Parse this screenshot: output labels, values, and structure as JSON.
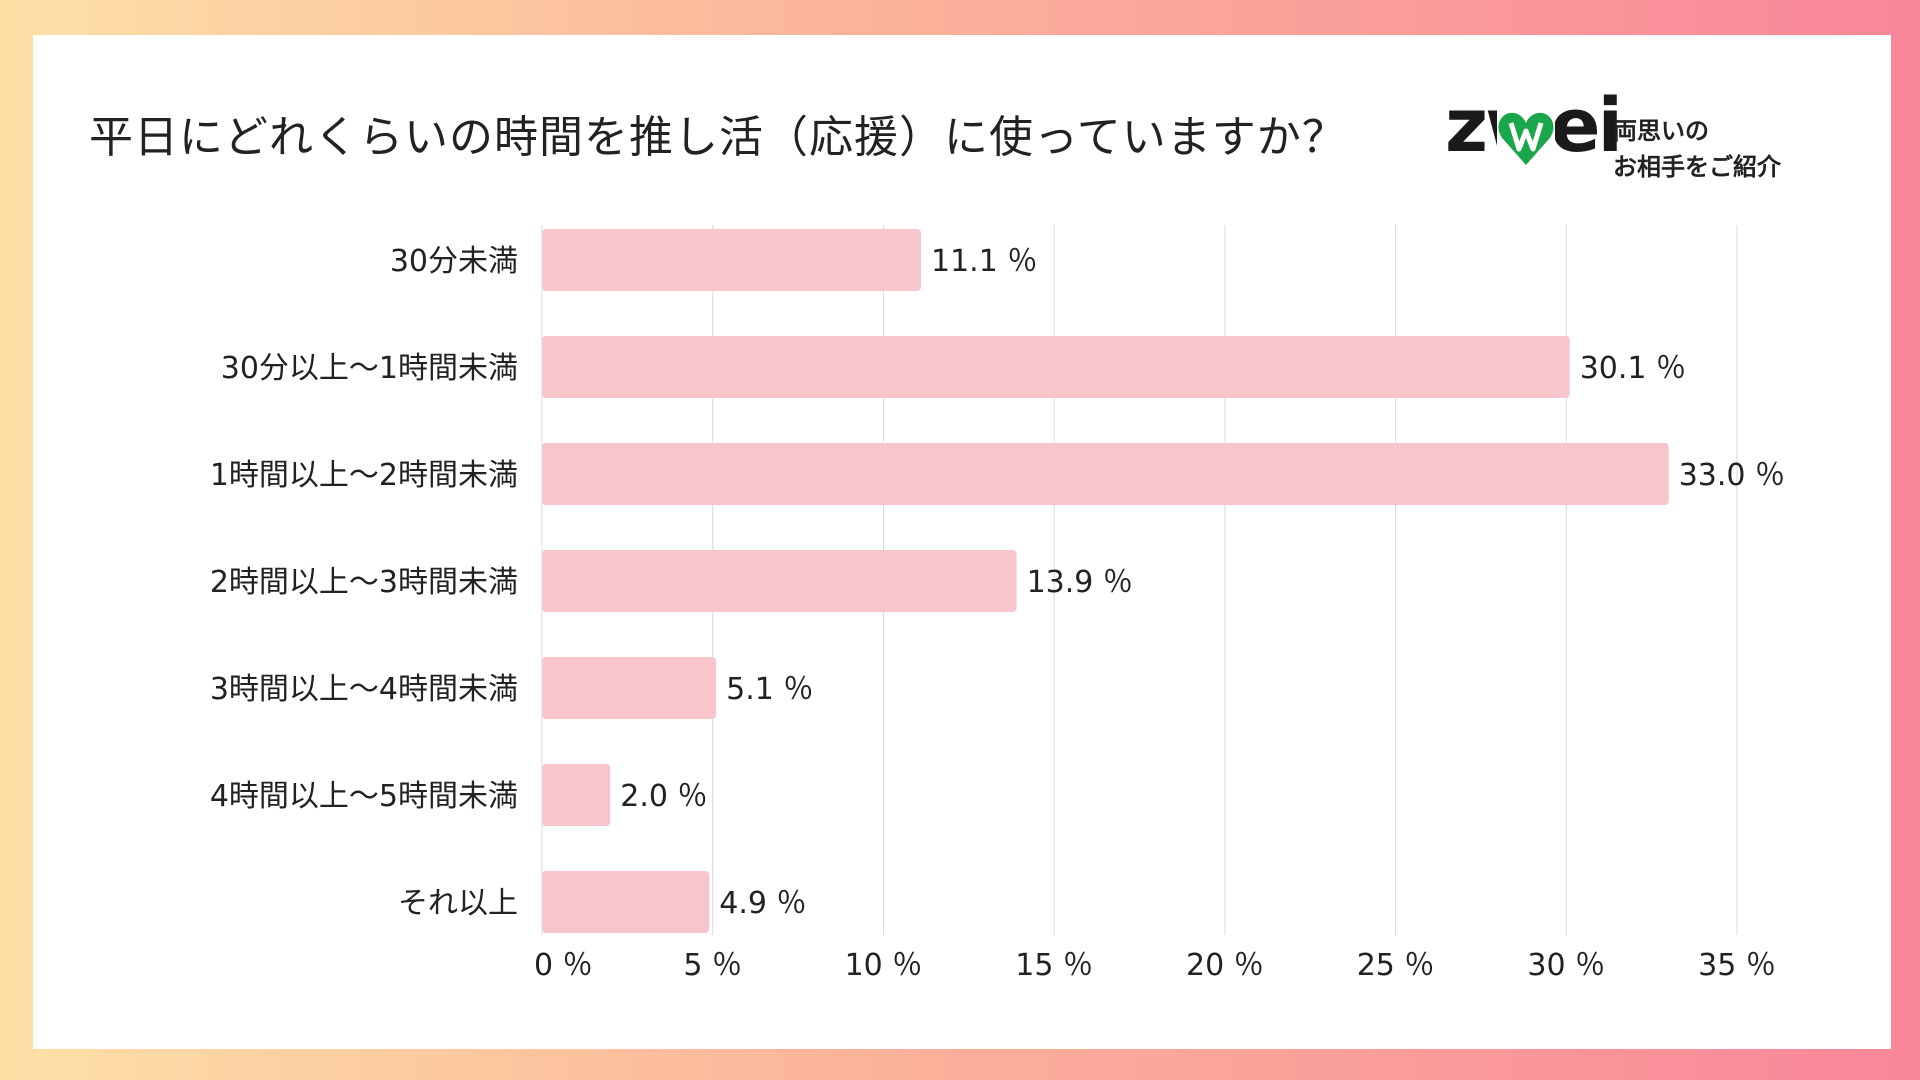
{
  "title": "平日にどれくらいの時間を推し活（応援）に使っていますか？",
  "logo": {
    "word": "zwei",
    "tagline_line1": "両思いの",
    "tagline_line2": "お相手をご紹介",
    "heart_color": "#1aa64a"
  },
  "chart_data": {
    "type": "bar",
    "orientation": "horizontal",
    "categories": [
      "30分未満",
      "30分以上～1時間未満",
      "1時間以上～2時間未満",
      "2時間以上～3時間未満",
      "3時間以上～4時間未満",
      "4時間以上～5時間未満",
      "それ以上"
    ],
    "values": [
      11.1,
      30.1,
      33.0,
      13.9,
      5.1,
      2.0,
      4.9
    ],
    "value_labels": [
      "11.1 ％",
      "30.1 ％",
      "33.0 ％",
      "13.9 ％",
      "5.1 ％",
      "2.0 ％",
      "4.9 ％"
    ],
    "xlim": [
      0,
      35
    ],
    "xticks": [
      0,
      5,
      10,
      15,
      20,
      25,
      30,
      35
    ],
    "xtick_labels": [
      "0 ％",
      "5 ％",
      "10 ％",
      "15 ％",
      "20 ％",
      "25 ％",
      "30 ％",
      "35 ％"
    ],
    "grid": true,
    "bar_color": "#f7c5cb",
    "grid_color": "#d9d9d9"
  }
}
